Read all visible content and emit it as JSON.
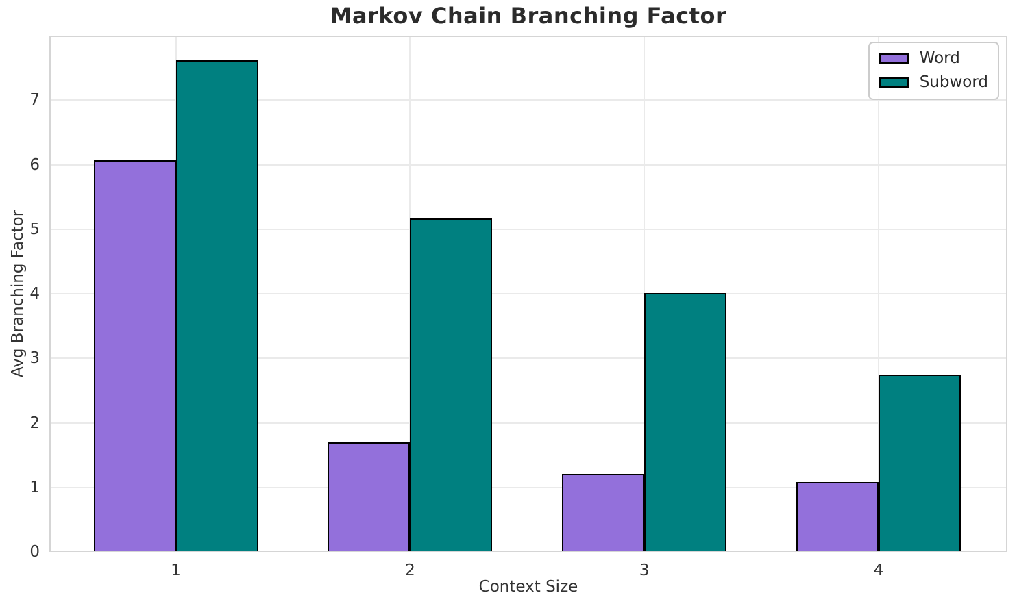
{
  "chart_data": {
    "type": "bar",
    "title": "Markov Chain Branching Factor",
    "xlabel": "Context Size",
    "ylabel": "Avg Branching Factor",
    "categories": [
      "1",
      "2",
      "3",
      "4"
    ],
    "series": [
      {
        "name": "Word",
        "color": "#9370DB",
        "values": [
          6.07,
          1.7,
          1.21,
          1.08
        ]
      },
      {
        "name": "Subword",
        "color": "#008080",
        "values": [
          7.62,
          5.17,
          4.01,
          2.75
        ]
      }
    ],
    "ylim": [
      0,
      8
    ],
    "yticks": [
      0,
      1,
      2,
      3,
      4,
      5,
      6,
      7
    ],
    "bar_edge_color": "#000000",
    "grid": true,
    "grid_color": "#eaeaea",
    "spine_color": "#d5d5d5",
    "legend_position": "upper right",
    "title_color": "#2b2b2b",
    "tick_color": "#333333"
  }
}
